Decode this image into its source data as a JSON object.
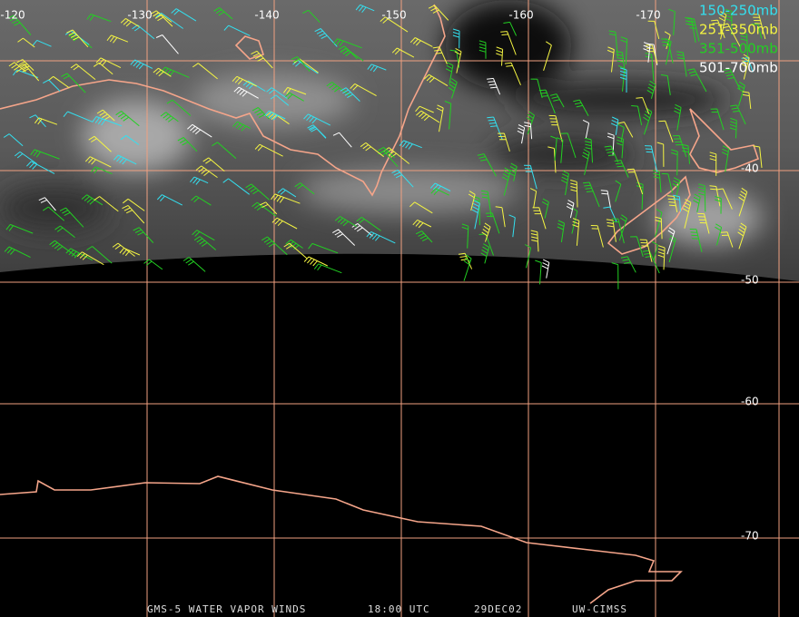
{
  "map": {
    "longitudes": [
      -120,
      -130,
      -140,
      -150,
      -160,
      -170
    ],
    "latitudes": [
      -40,
      -50,
      -60,
      -70
    ],
    "legend": [
      {
        "label": "150-250mb",
        "color": "#33e0f0"
      },
      {
        "label": "251-350mb",
        "color": "#f5f542"
      },
      {
        "label": "351-500mb",
        "color": "#22d022"
      },
      {
        "label": "501-700mb",
        "color": "#ffffff"
      }
    ],
    "footer": [
      "GMS-5 WATER VAPOR WINDS",
      "18:00 UTC",
      "29DEC02",
      "UW-CIMSS"
    ]
  }
}
